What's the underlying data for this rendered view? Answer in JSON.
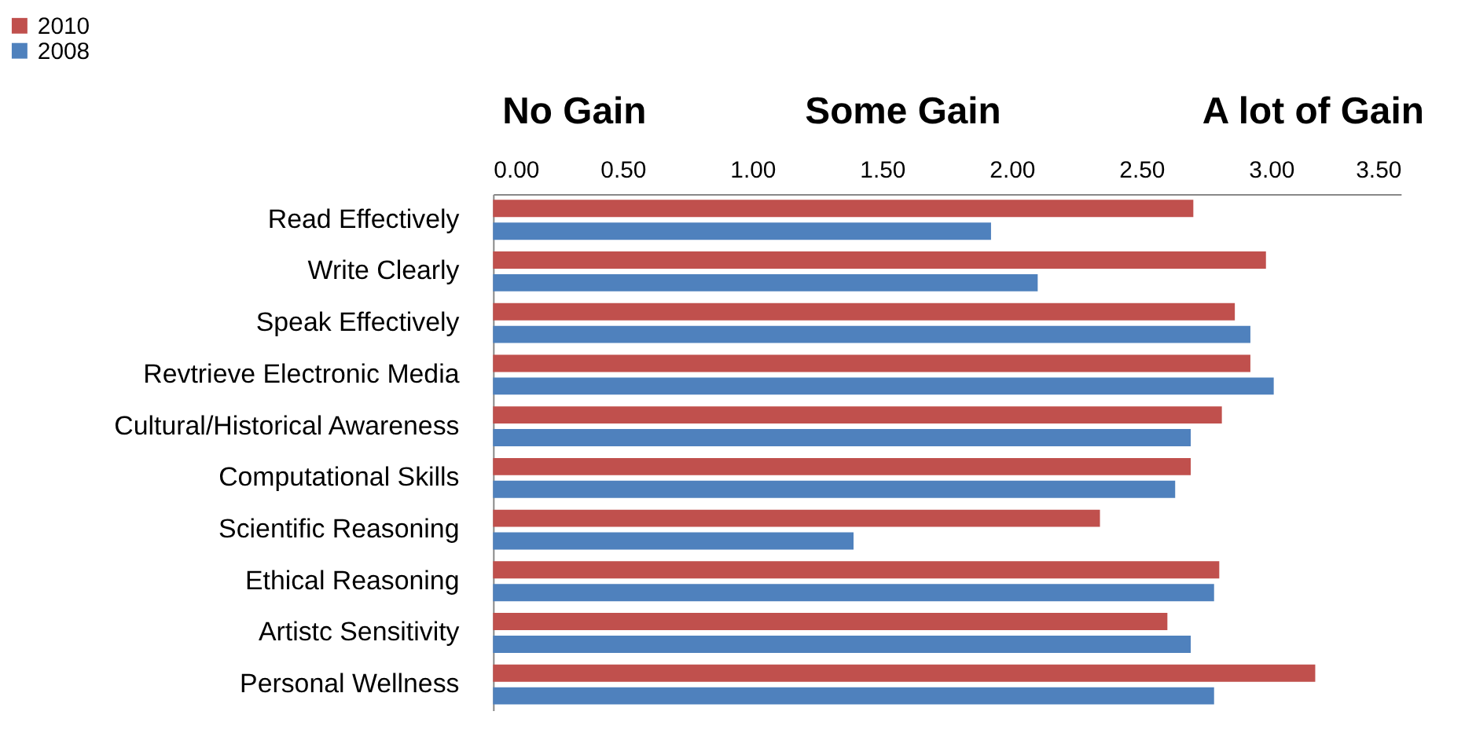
{
  "chart_data": {
    "type": "bar",
    "orientation": "horizontal",
    "categories": [
      "Read Effectively",
      "Write Clearly",
      "Speak Effectively",
      "Revtrieve Electronic Media",
      "Cultural/Historical Awareness",
      "Computational Skills",
      "Scientific Reasoning",
      "Ethical Reasoning",
      "Artistc Sensitivity",
      "Personal Wellness"
    ],
    "series": [
      {
        "name": "2010",
        "color": "#c0504d",
        "values": [
          2.7,
          2.98,
          2.86,
          2.92,
          2.81,
          2.69,
          2.34,
          2.8,
          2.6,
          3.17
        ]
      },
      {
        "name": "2008",
        "color": "#4f81bd",
        "values": [
          1.92,
          2.1,
          2.92,
          3.01,
          2.69,
          2.63,
          1.39,
          2.78,
          2.69,
          2.78
        ]
      }
    ],
    "xlim": [
      0,
      3.5
    ],
    "xticks": [
      {
        "value": 0,
        "label": "0.00"
      },
      {
        "value": 0.5,
        "label": "0.50"
      },
      {
        "value": 1,
        "label": "1.00"
      },
      {
        "value": 1.5,
        "label": "1.50"
      },
      {
        "value": 2,
        "label": "2.00"
      },
      {
        "value": 2.5,
        "label": "2.50"
      },
      {
        "value": 3,
        "label": "3.00"
      },
      {
        "value": 3.5,
        "label": "3.50"
      }
    ],
    "annotations": [
      "No Gain",
      "Some Gain",
      "A lot of Gain"
    ],
    "grid": false,
    "legend": "top left"
  }
}
